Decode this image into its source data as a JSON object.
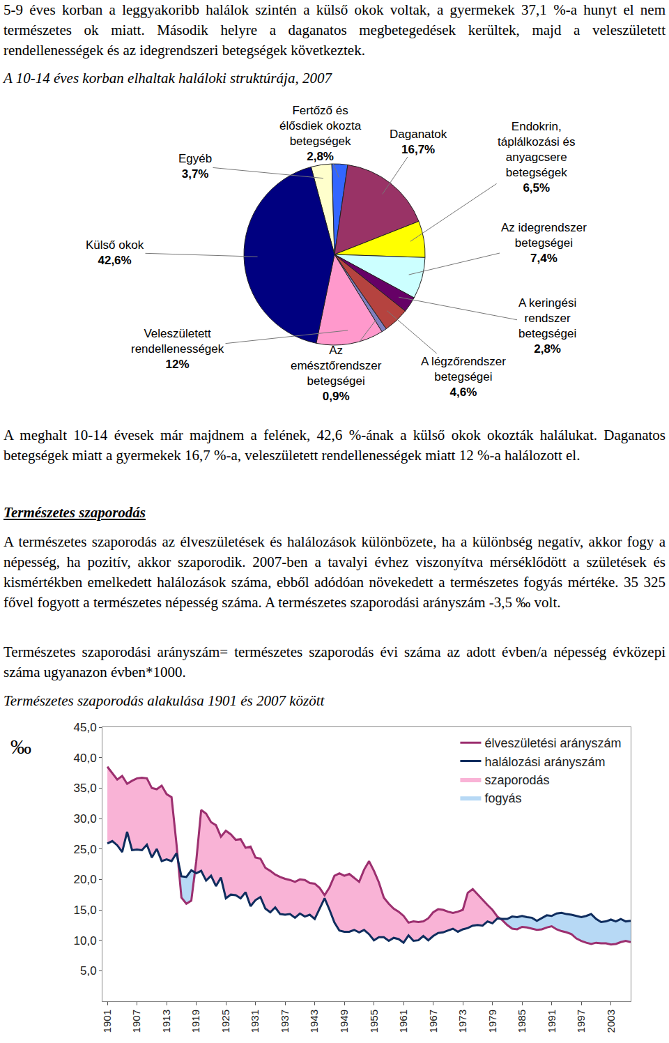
{
  "text": {
    "intro": "5-9 éves korban a leggyakoribb halálok szintén a külső okok voltak, a gyermekek 37,1 %-a hunyt el nem természetes ok miatt. Második helyre a daganatos megbetegedések kerültek, majd a veleszületett rendellenességek és az idegrendszeri betegségek következtek.",
    "pie_comment": "A meghalt 10-14 évesek már majdnem a felének, 42,6 %-ának a külső okok okozták halálukat. Daganatos betegségek miatt a gyermekek 16,7 %-a, veleszületett rendellenességek miatt 12 %-a halálozott el.",
    "heading": "Természetes szaporodás",
    "body": "A természetes szaporodás az élveszületések és halálozások különbözete, ha a különbség negatív, akkor fogy a népesség, ha pozitív, akkor szaporodik. 2007-ben a tavalyi évhez viszonyítva mérséklődött a születések és kismértékben emelkedett halálozások száma, ebből adódóan növekedett a természetes fogyás mértéke. 35 325 fővel fogyott a természetes népesség száma. A természetes szaporodási arányszám -3,5 ‰ volt.",
    "definition": "Természetes szaporodási arányszám= természetes szaporodás évi száma az adott évben/a népesség évközepi száma ugyanazon évben*1000."
  },
  "chart_data": [
    {
      "type": "pie",
      "title": "A 10-14 éves korban elhaltak haláloki struktúrája, 2007",
      "categories": [
        "Egyéb",
        "Fertőző és élősdiek okozta betegségek",
        "Daganatok",
        "Endokrin, táplálkozási és anyagcsere betegségek",
        "Az idegrendszer betegségei",
        "A keringési rendszer betegségei",
        "A légzőrendszer betegségei",
        "Az emésztőrendszer betegségei",
        "Veleszületett rendellenességek",
        "Külső okok"
      ],
      "values": [
        3.7,
        2.8,
        16.7,
        6.5,
        7.4,
        2.8,
        4.6,
        0.9,
        12,
        42.6
      ],
      "value_labels": [
        "3,7%",
        "2,8%",
        "16,7%",
        "6,5%",
        "7,4%",
        "2,8%",
        "4,6%",
        "0,9%",
        "12%",
        "42,6%"
      ],
      "colors": [
        "#ffffcc",
        "#3366ff",
        "#993366",
        "#ffff00",
        "#ccffff",
        "#660066",
        "#b5433f",
        "#8080c0",
        "#ff99cc",
        "#000080"
      ],
      "data_labels": true
    },
    {
      "type": "line",
      "title": "Természetes szaporodás alakulása 1901 és 2007 között",
      "ylabel": "‰",
      "x": [
        1901,
        1902,
        1903,
        1904,
        1905,
        1906,
        1907,
        1908,
        1909,
        1910,
        1911,
        1912,
        1913,
        1914,
        1915,
        1916,
        1917,
        1918,
        1919,
        1920,
        1921,
        1922,
        1923,
        1924,
        1925,
        1926,
        1927,
        1928,
        1929,
        1930,
        1931,
        1932,
        1933,
        1934,
        1935,
        1936,
        1937,
        1938,
        1939,
        1940,
        1941,
        1942,
        1943,
        1944,
        1945,
        1946,
        1947,
        1948,
        1949,
        1950,
        1951,
        1952,
        1953,
        1954,
        1955,
        1956,
        1957,
        1958,
        1959,
        1960,
        1961,
        1962,
        1963,
        1964,
        1965,
        1966,
        1967,
        1968,
        1969,
        1970,
        1971,
        1972,
        1973,
        1974,
        1975,
        1976,
        1977,
        1978,
        1979,
        1980,
        1981,
        1982,
        1983,
        1984,
        1985,
        1986,
        1987,
        1988,
        1989,
        1990,
        1991,
        1992,
        1993,
        1994,
        1995,
        1996,
        1997,
        1998,
        1999,
        2000,
        2001,
        2002,
        2003,
        2004,
        2005,
        2006,
        2007
      ],
      "series": [
        {
          "name": "élveszületési arányszám",
          "color": "#9c2f6f",
          "values": [
            38.5,
            37.5,
            36.4,
            37.0,
            35.7,
            36.2,
            36.6,
            36.7,
            36.6,
            35.0,
            34.8,
            35.4,
            34.0,
            33.5,
            25.8,
            17.0,
            16.0,
            16.5,
            23.0,
            31.4,
            30.8,
            29.4,
            28.9,
            27.0,
            28.0,
            27.4,
            26.5,
            26.6,
            25.2,
            25.4,
            23.6,
            23.4,
            21.9,
            21.4,
            20.8,
            20.4,
            20.1,
            19.9,
            19.6,
            20.0,
            19.9,
            19.4,
            19.3,
            18.6,
            17.4,
            18.7,
            20.6,
            21.0,
            20.6,
            20.9,
            20.2,
            19.6,
            21.6,
            23.0,
            21.4,
            19.5,
            17.0,
            16.0,
            15.2,
            14.7,
            14.0,
            12.9,
            13.1,
            13.0,
            13.1,
            13.6,
            14.6,
            15.1,
            15.0,
            14.7,
            14.5,
            14.7,
            15.0,
            17.8,
            18.4,
            17.5,
            16.7,
            15.8,
            15.0,
            13.9,
            13.3,
            12.5,
            11.9,
            11.8,
            12.2,
            12.1,
            11.9,
            11.7,
            11.8,
            12.1,
            12.3,
            11.8,
            11.5,
            11.3,
            11.0,
            10.3,
            9.9,
            9.6,
            9.4,
            9.6,
            9.5,
            9.5,
            9.3,
            9.4,
            9.7,
            9.9,
            9.7
          ]
        },
        {
          "name": "halálozási arányszám",
          "color": "#0f2d5e",
          "values": [
            25.9,
            26.3,
            25.6,
            24.5,
            27.8,
            24.8,
            24.9,
            24.8,
            25.7,
            23.6,
            25.0,
            23.0,
            23.3,
            23.0,
            24.3,
            20.5,
            20.4,
            21.5,
            21.0,
            21.4,
            19.8,
            20.6,
            18.9,
            20.3,
            16.9,
            17.5,
            17.4,
            16.9,
            17.9,
            15.6,
            16.6,
            17.1,
            15.2,
            14.6,
            15.4,
            14.3,
            14.2,
            14.3,
            13.7,
            14.4,
            13.9,
            14.2,
            13.5,
            15.3,
            16.9,
            15.0,
            12.9,
            11.6,
            11.4,
            11.4,
            11.7,
            11.3,
            11.7,
            11.0,
            10.0,
            10.5,
            10.5,
            9.9,
            10.4,
            10.2,
            9.6,
            10.8,
            9.9,
            10.0,
            10.7,
            10.0,
            10.7,
            11.2,
            11.3,
            11.6,
            11.9,
            11.4,
            11.8,
            12.0,
            12.4,
            12.5,
            12.4,
            13.1,
            12.8,
            13.6,
            13.5,
            13.5,
            13.9,
            13.8,
            14.0,
            13.8,
            13.7,
            13.2,
            13.7,
            14.1,
            14.0,
            14.4,
            14.5,
            14.3,
            14.2,
            14.0,
            13.8,
            14.0,
            14.3,
            13.5,
            13.0,
            13.1,
            13.4,
            13.1,
            13.5,
            13.1,
            13.2
          ]
        }
      ],
      "areas": [
        {
          "name": "szaporodás",
          "color": "#f9b3d6"
        },
        {
          "name": "fogyás",
          "color": "#b7d9f5"
        }
      ],
      "xlim": [
        1900,
        2007
      ],
      "xticks": [
        1901,
        1907,
        1913,
        1919,
        1925,
        1931,
        1937,
        1943,
        1949,
        1955,
        1961,
        1967,
        1973,
        1979,
        1985,
        1991,
        1997,
        2003
      ],
      "ylim": [
        0,
        45
      ],
      "yticks": [
        {
          "value": 5,
          "label": "5,0"
        },
        {
          "value": 10,
          "label": "10,0"
        },
        {
          "value": 15,
          "label": "15,0"
        },
        {
          "value": 20,
          "label": "20,0"
        },
        {
          "value": 25,
          "label": "25,0"
        },
        {
          "value": 30,
          "label": "30,0"
        },
        {
          "value": 35,
          "label": "35,0"
        },
        {
          "value": 40,
          "label": "40,0"
        },
        {
          "value": 45,
          "label": "45,0"
        }
      ],
      "grid": false,
      "legend": "upper right"
    }
  ]
}
